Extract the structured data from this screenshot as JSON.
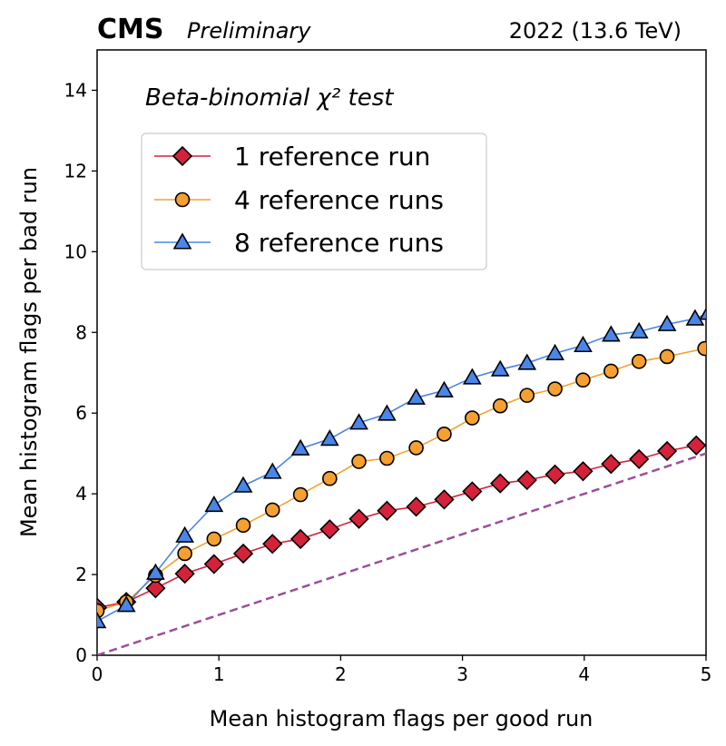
{
  "header": {
    "experiment": "CMS",
    "status": "Preliminary",
    "run_info": "2022 (13.6 TeV)"
  },
  "chart_data": {
    "type": "line",
    "title": "",
    "annotation": "Beta-binomial χ² test",
    "xlabel": "Mean histogram flags per good run",
    "ylabel": "Mean histogram flags per bad run",
    "xlim": [
      0,
      5
    ],
    "ylim": [
      0,
      15
    ],
    "xticks": [
      0,
      1,
      2,
      3,
      4,
      5
    ],
    "xtick_labels": [
      "0",
      "1",
      "2",
      "3",
      "4",
      "5"
    ],
    "yticks": [
      0,
      2,
      4,
      6,
      8,
      10,
      12,
      14
    ],
    "ytick_labels": [
      "0",
      "2",
      "4",
      "6",
      "8",
      "10",
      "12",
      "14"
    ],
    "grid": false,
    "legend_position": "upper-left",
    "series": [
      {
        "name": "1 reference run",
        "color": "#d6213a",
        "marker": "diamond",
        "x": [
          0.0,
          0.24,
          0.48,
          0.72,
          0.96,
          1.2,
          1.44,
          1.67,
          1.91,
          2.15,
          2.38,
          2.62,
          2.85,
          3.08,
          3.31,
          3.53,
          3.76,
          3.99,
          4.22,
          4.45,
          4.68,
          4.92
        ],
        "y": [
          1.18,
          1.32,
          1.66,
          2.02,
          2.26,
          2.52,
          2.76,
          2.88,
          3.12,
          3.38,
          3.58,
          3.68,
          3.86,
          4.06,
          4.26,
          4.34,
          4.48,
          4.56,
          4.74,
          4.86,
          5.06,
          5.2
        ]
      },
      {
        "name": "4 reference runs",
        "color": "#f5a030",
        "marker": "circle",
        "x": [
          0.0,
          0.24,
          0.48,
          0.72,
          0.96,
          1.2,
          1.44,
          1.67,
          1.91,
          2.15,
          2.38,
          2.62,
          2.85,
          3.08,
          3.31,
          3.53,
          3.76,
          3.99,
          4.22,
          4.45,
          4.68,
          4.99
        ],
        "y": [
          1.1,
          1.32,
          1.98,
          2.52,
          2.88,
          3.22,
          3.6,
          3.98,
          4.38,
          4.8,
          4.88,
          5.14,
          5.48,
          5.88,
          6.18,
          6.44,
          6.6,
          6.82,
          7.04,
          7.28,
          7.4,
          7.6
        ]
      },
      {
        "name": "8 reference runs",
        "color": "#4a86e8",
        "marker": "triangle",
        "x": [
          0.0,
          0.24,
          0.48,
          0.72,
          0.96,
          1.2,
          1.44,
          1.67,
          1.91,
          2.15,
          2.38,
          2.62,
          2.85,
          3.08,
          3.31,
          3.53,
          3.76,
          3.99,
          4.22,
          4.45,
          4.68,
          4.91,
          5.02
        ],
        "y": [
          0.84,
          1.24,
          2.04,
          2.96,
          3.72,
          4.2,
          4.54,
          5.12,
          5.36,
          5.76,
          5.98,
          6.38,
          6.56,
          6.88,
          7.08,
          7.24,
          7.48,
          7.68,
          7.94,
          8.02,
          8.2,
          8.34,
          8.48
        ]
      }
    ],
    "reference_line": {
      "name": "",
      "style": "dashed",
      "color": "#9a4f96",
      "x": [
        0,
        5
      ],
      "y": [
        0,
        5
      ]
    }
  }
}
